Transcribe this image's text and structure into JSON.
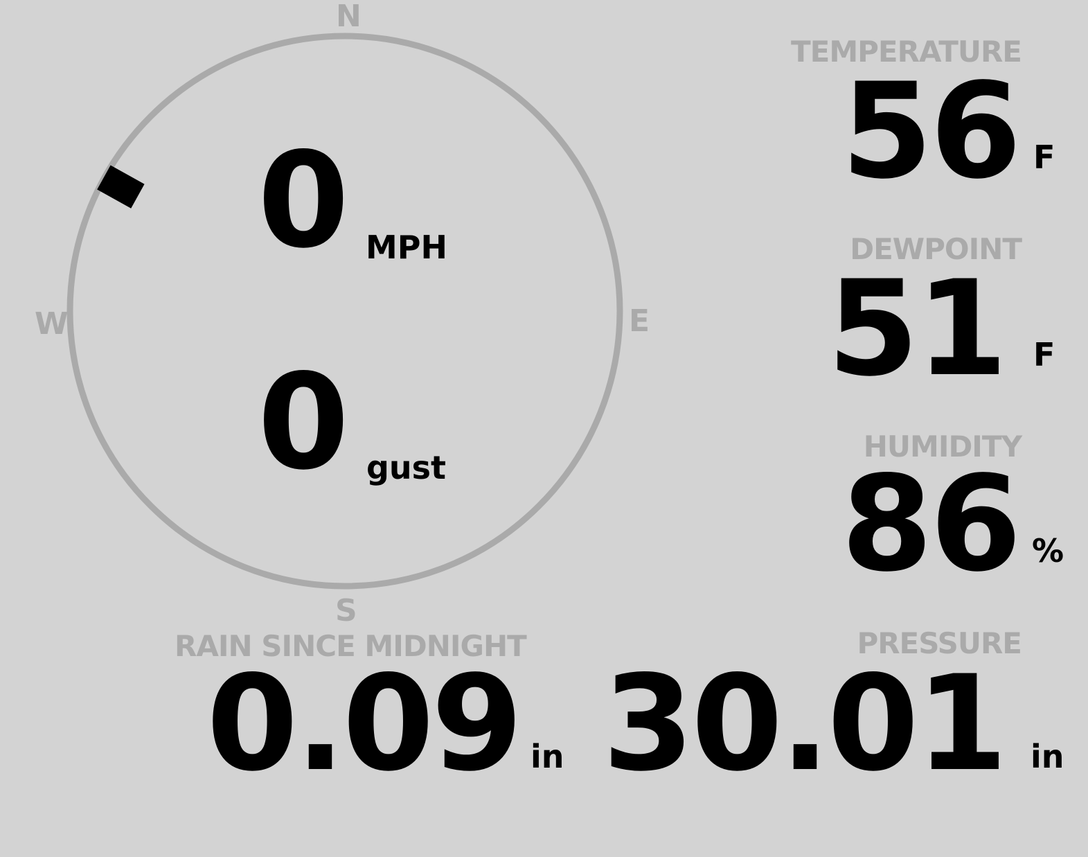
{
  "wind": {
    "speed": "0",
    "speed_unit": "MPH",
    "gust": "0",
    "gust_unit": "gust",
    "direction_degrees": 299,
    "cardinals": {
      "n": "N",
      "e": "E",
      "s": "S",
      "w": "W"
    }
  },
  "temperature": {
    "label": "TEMPERATURE",
    "value": "56",
    "unit": "F"
  },
  "dewpoint": {
    "label": "DEWPOINT",
    "value": "51",
    "unit": "F"
  },
  "humidity": {
    "label": "HUMIDITY",
    "value": "86",
    "unit": "%"
  },
  "rain": {
    "label": "RAIN SINCE MIDNIGHT",
    "value": "0.09",
    "unit": "in"
  },
  "pressure": {
    "label": "PRESSURE",
    "value": "30.01",
    "unit": "in"
  },
  "colors": {
    "background": "#d3d3d3",
    "label": "#aaaaaa",
    "value": "#000000"
  }
}
